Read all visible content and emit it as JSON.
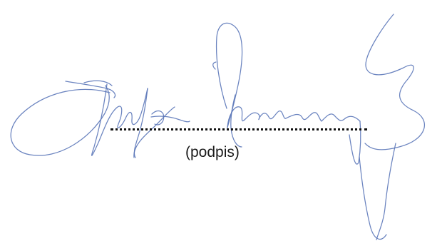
{
  "signature_block": {
    "caption": "(podpis)",
    "ink_color": "#5a76b8",
    "line_color": "#111111"
  }
}
